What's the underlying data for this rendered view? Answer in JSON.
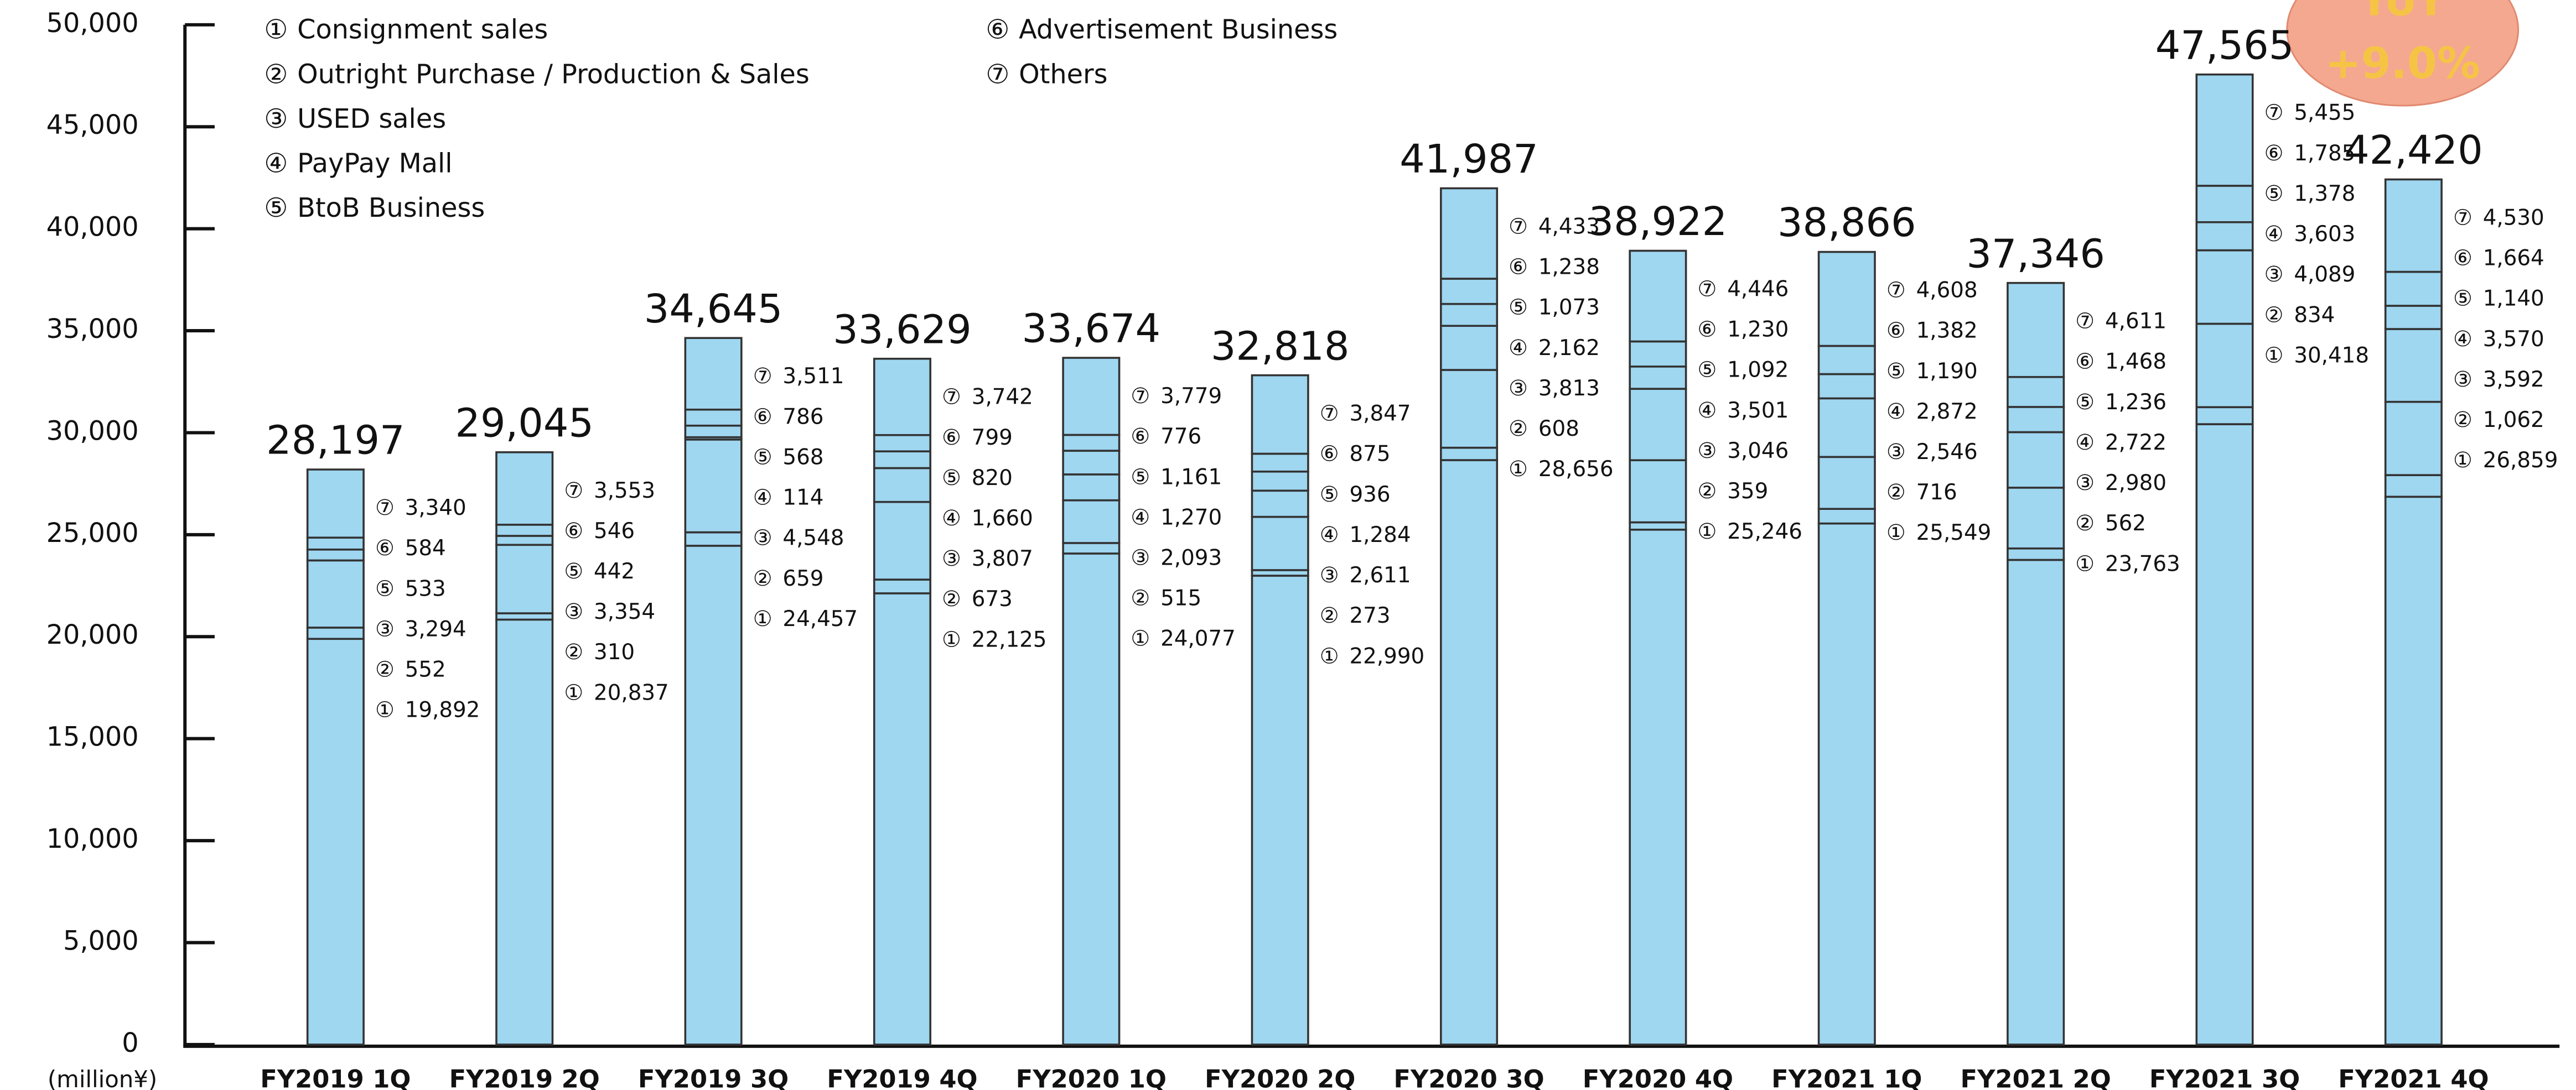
{
  "chart_data": {
    "type": "stacked_bar",
    "y_label": "(million¥)",
    "categories": [
      "FY2019 1Q",
      "FY2019 2Q",
      "FY2019 3Q",
      "FY2019 4Q",
      "FY2020 1Q",
      "FY2020 2Q",
      "FY2020 3Q",
      "FY2020 4Q",
      "FY2021 1Q",
      "FY2021 2Q",
      "FY2021 3Q",
      "FY2021 4Q"
    ],
    "ylim": [
      0,
      50000
    ],
    "yticks": [
      0,
      {
        "value": 5000,
        "label": "5,000"
      },
      {
        "value": 10000,
        "label": "10,000"
      },
      {
        "value": 15000,
        "label": "15,000"
      },
      {
        "value": 20000,
        "label": "20,000"
      },
      {
        "value": 25000,
        "label": "25,000"
      },
      {
        "value": 30000,
        "label": "30,000"
      },
      {
        "value": 35000,
        "label": "35,000"
      },
      {
        "value": 40000,
        "label": "40,000"
      },
      {
        "value": 45000,
        "label": "45,000"
      },
      {
        "value": 50000,
        "label": "50,000"
      }
    ],
    "series": [
      {
        "marker": "①",
        "name": "Consignment sales",
        "color": "#9fd6f0",
        "values": [
          19892,
          20837,
          24457,
          22125,
          24077,
          22990,
          28656,
          25246,
          25549,
          23763,
          30418,
          26859
        ],
        "value_labels": [
          "19,892",
          "20,837",
          "24,457",
          "22,125",
          "24,077",
          "22,990",
          "28,656",
          "25,246",
          "25,549",
          "23,763",
          "30,418",
          "26,859"
        ]
      },
      {
        "marker": "②",
        "name": "Outright Purchase / Production & Sales",
        "color": "#9fd6f0",
        "values": [
          552,
          310,
          659,
          673,
          515,
          273,
          608,
          359,
          716,
          562,
          834,
          1062
        ],
        "value_labels": [
          "552",
          "310",
          "659",
          "673",
          "515",
          "273",
          "608",
          "359",
          "716",
          "562",
          "834",
          "1,062"
        ]
      },
      {
        "marker": "③",
        "name": "USED sales",
        "color": "#9fd6f0",
        "values": [
          3294,
          3354,
          4548,
          3807,
          2093,
          2611,
          3813,
          3046,
          2546,
          2980,
          4089,
          3592
        ],
        "value_labels": [
          "3,294",
          "3,354",
          "4,548",
          "3,807",
          "2,093",
          "2,611",
          "3,813",
          "3,046",
          "2,546",
          "2,980",
          "4,089",
          "3,592"
        ]
      },
      {
        "marker": "④",
        "name": "PayPay Mall",
        "color": "#9fd6f0",
        "values": [
          null,
          null,
          114,
          1660,
          1270,
          1284,
          2162,
          3501,
          2872,
          2722,
          3603,
          3570
        ],
        "value_labels": [
          null,
          null,
          "114",
          "1,660",
          "1,270",
          "1,284",
          "2,162",
          "3,501",
          "2,872",
          "2,722",
          "3,603",
          "3,570"
        ]
      },
      {
        "marker": "⑤",
        "name": "BtoB Business",
        "color": "#9fd6f0",
        "values": [
          533,
          442,
          568,
          820,
          1161,
          936,
          1073,
          1092,
          1190,
          1236,
          1378,
          1140
        ],
        "value_labels": [
          "533",
          "442",
          "568",
          "820",
          "1,161",
          "936",
          "1,073",
          "1,092",
          "1,190",
          "1,236",
          "1,378",
          "1,140"
        ]
      },
      {
        "marker": "⑥",
        "name": "Advertisement Business",
        "color": "#9fd6f0",
        "values": [
          584,
          546,
          786,
          799,
          776,
          875,
          1238,
          1230,
          1382,
          1468,
          1785,
          1664
        ],
        "value_labels": [
          "584",
          "546",
          "786",
          "799",
          "776",
          "875",
          "1,238",
          "1,230",
          "1,382",
          "1,468",
          "1,785",
          "1,664"
        ]
      },
      {
        "marker": "⑦",
        "name": "Others",
        "color": "#9fd6f0",
        "values": [
          3340,
          3553,
          3511,
          3742,
          3779,
          3847,
          4433,
          4446,
          4608,
          4611,
          5455,
          4530
        ],
        "value_labels": [
          "3,340",
          "3,553",
          "3,511",
          "3,742",
          "3,779",
          "3,847",
          "4,433",
          "4,446",
          "4,608",
          "4,611",
          "5,455",
          "4,530"
        ]
      }
    ],
    "totals": [
      28197,
      29045,
      34645,
      33629,
      33674,
      32818,
      41987,
      38922,
      38866,
      37346,
      47565,
      42420
    ],
    "total_labels": [
      "28,197",
      "29,045",
      "34,645",
      "33,629",
      "33,674",
      "32,818",
      "41,987",
      "38,922",
      "38,866",
      "37,346",
      "47,565",
      "42,420"
    ],
    "annotations": [
      "YoY",
      "+9.0%"
    ]
  }
}
